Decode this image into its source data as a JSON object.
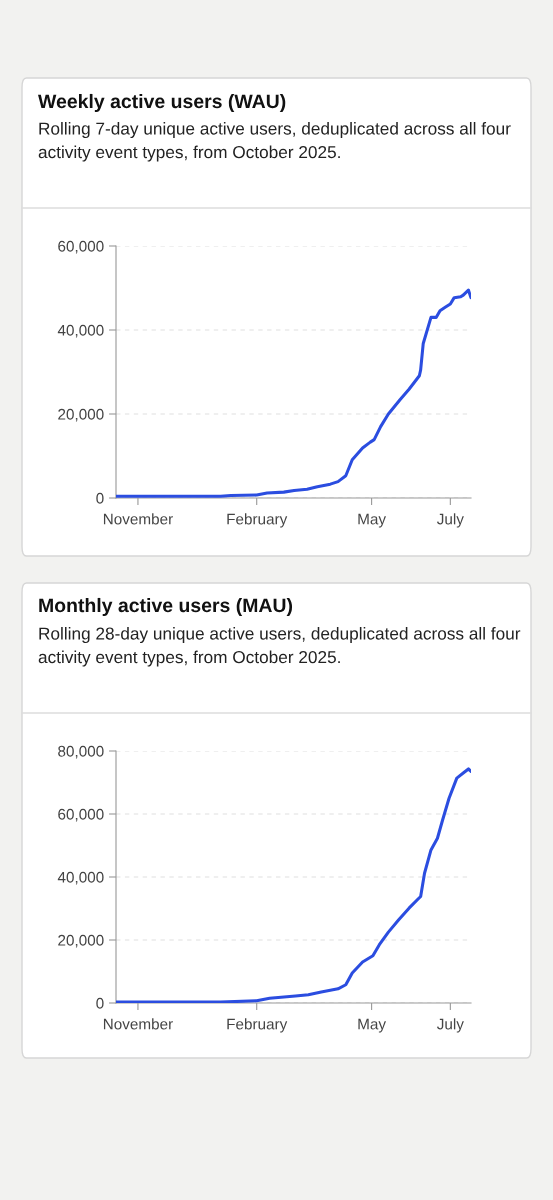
{
  "chart_data": [
    {
      "type": "line",
      "title": "Weekly active users (WAU)",
      "subtitle": "Rolling 7-day unique active users, deduplicated across all four activity event types, from October 2025.",
      "x": [
        "2025-10-15",
        "2026-01-04",
        "2026-01-12",
        "2026-02-01",
        "2026-02-09",
        "2026-02-22",
        "2026-03-02",
        "2026-03-12",
        "2026-03-20",
        "2026-03-30",
        "2026-04-05",
        "2026-04-11",
        "2026-04-16",
        "2026-04-24",
        "2026-04-30",
        "2026-05-03",
        "2026-05-08",
        "2026-05-14",
        "2026-05-23",
        "2026-05-30",
        "2026-06-07",
        "2026-06-08",
        "2026-06-10",
        "2026-06-16",
        "2026-06-20",
        "2026-06-23",
        "2026-06-27",
        "2026-07-01",
        "2026-07-04",
        "2026-07-09",
        "2026-07-11",
        "2026-07-15",
        "2026-07-17"
      ],
      "series": [
        {
          "color": "#2b4de0",
          "values": [
            400,
            400,
            600,
            700,
            1200,
            1400,
            1800,
            2100,
            2700,
            3300,
            3900,
            5300,
            9100,
            11900,
            13300,
            13900,
            17000,
            20000,
            23400,
            25900,
            29100,
            30500,
            36800,
            43000,
            43000,
            44600,
            45400,
            46200,
            47700,
            47900,
            48300,
            49500,
            47700
          ]
        }
      ],
      "xlim": [
        "2025-10-15",
        "2026-07-17"
      ],
      "xticks": [
        {
          "value": "2025-11-01",
          "label": "November"
        },
        {
          "value": "2026-02-01",
          "label": "February"
        },
        {
          "value": "2026-05-01",
          "label": "May"
        },
        {
          "value": "2026-07-01",
          "label": "July"
        }
      ],
      "ylim": [
        0,
        60000
      ],
      "yticks": [
        0,
        {
          "value": 20000,
          "label": "20,000"
        },
        {
          "value": 40000,
          "label": "40,000"
        },
        {
          "value": 60000,
          "label": "60,000"
        }
      ],
      "grid": "y",
      "marker": "none",
      "line_style": "solid"
    },
    {
      "type": "line",
      "title": "Monthly active users (MAU)",
      "subtitle": "Rolling 28-day unique active users, deduplicated across all four activity event types, from October 2025.",
      "x": [
        "2025-10-15",
        "2026-01-04",
        "2026-02-01",
        "2026-02-11",
        "2026-03-03",
        "2026-03-13",
        "2026-03-23",
        "2026-04-05",
        "2026-04-11",
        "2026-04-16",
        "2026-04-24",
        "2026-05-02",
        "2026-05-07",
        "2026-05-14",
        "2026-05-22",
        "2026-05-30",
        "2026-06-06",
        "2026-06-08",
        "2026-06-11",
        "2026-06-16",
        "2026-06-21",
        "2026-06-25",
        "2026-06-30",
        "2026-07-06",
        "2026-07-11",
        "2026-07-15",
        "2026-07-17"
      ],
      "series": [
        {
          "color": "#2b4de0",
          "values": [
            300,
            300,
            700,
            1500,
            2200,
            2600,
            3500,
            4500,
            5800,
            9500,
            13000,
            15000,
            18500,
            22500,
            26400,
            30100,
            33000,
            33800,
            41200,
            48600,
            52300,
            58100,
            65000,
            71400,
            73000,
            74300,
            73500
          ]
        }
      ],
      "xlim": [
        "2025-10-15",
        "2026-07-17"
      ],
      "xticks": [
        {
          "value": "2025-11-01",
          "label": "November"
        },
        {
          "value": "2026-02-01",
          "label": "February"
        },
        {
          "value": "2026-05-01",
          "label": "May"
        },
        {
          "value": "2026-07-01",
          "label": "July"
        }
      ],
      "ylim": [
        0,
        80000
      ],
      "yticks": [
        0,
        {
          "value": 20000,
          "label": "20,000"
        },
        {
          "value": 40000,
          "label": "40,000"
        },
        {
          "value": 60000,
          "label": "60,000"
        },
        {
          "value": 80000,
          "label": "80,000"
        }
      ],
      "grid": "y",
      "marker": "none",
      "line_style": "solid"
    }
  ]
}
